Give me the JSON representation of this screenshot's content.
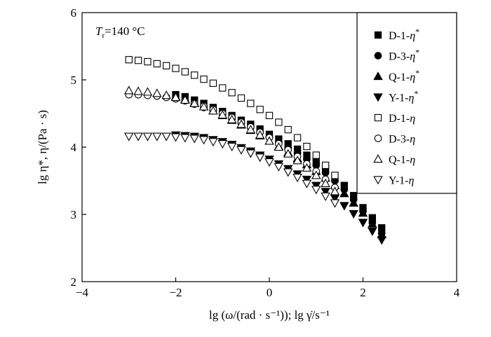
{
  "chart_data": {
    "type": "scatter",
    "annotation": "Tr=140 °C",
    "annotation_parts": {
      "symbol": "T",
      "subscript": "r",
      "value": "=140 °C"
    },
    "xlabel": "lg (ω/(rad · s⁻¹)); lg γ̇/s⁻¹",
    "ylabel": "lg η*, η/(Pa · s)",
    "xlim": [
      -4,
      4
    ],
    "ylim": [
      2,
      6
    ],
    "xticks": [
      -4,
      -2,
      0,
      2,
      4
    ],
    "yticks": [
      2,
      3,
      4,
      5,
      6
    ],
    "xtick_labels": [
      "−4",
      "−2",
      "0",
      "2",
      "4"
    ],
    "ytick_labels": [
      "2",
      "3",
      "4",
      "5",
      "6"
    ],
    "grid": false,
    "legend_position": "top-right",
    "series": [
      {
        "name": "D-1-η*",
        "marker": "square",
        "filled": true,
        "x": [
          -2.0,
          -1.8,
          -1.6,
          -1.4,
          -1.2,
          -1.0,
          -0.8,
          -0.6,
          -0.4,
          -0.2,
          0.0,
          0.2,
          0.4,
          0.6,
          0.8,
          1.0,
          1.2,
          1.4,
          1.6,
          1.8,
          2.0,
          2.2,
          2.4
        ],
        "y": [
          4.78,
          4.75,
          4.7,
          4.65,
          4.59,
          4.53,
          4.47,
          4.4,
          4.34,
          4.27,
          4.19,
          4.12,
          4.05,
          3.97,
          3.88,
          3.79,
          3.68,
          3.56,
          3.43,
          3.28,
          3.1,
          2.95,
          2.8
        ]
      },
      {
        "name": "D-3-η*",
        "marker": "circle",
        "filled": true,
        "x": [
          -2.0,
          -1.8,
          -1.6,
          -1.4,
          -1.2,
          -1.0,
          -0.8,
          -0.6,
          -0.4,
          -0.2,
          0.0,
          0.2,
          0.4,
          0.6,
          0.8,
          1.0,
          1.2,
          1.4,
          1.6,
          1.8,
          2.0,
          2.2,
          2.4
        ],
        "y": [
          4.72,
          4.69,
          4.64,
          4.59,
          4.54,
          4.48,
          4.42,
          4.36,
          4.29,
          4.22,
          4.15,
          4.07,
          3.99,
          3.91,
          3.82,
          3.73,
          3.62,
          3.5,
          3.37,
          3.22,
          3.05,
          2.88,
          2.72
        ]
      },
      {
        "name": "Q-1-η*",
        "marker": "triangle-up",
        "filled": true,
        "x": [
          -2.0,
          -1.8,
          -1.6,
          -1.4,
          -1.2,
          -1.0,
          -0.8,
          -0.6,
          -0.4,
          -0.2,
          0.0,
          0.2,
          0.4,
          0.6,
          0.8,
          1.0,
          1.2,
          1.4,
          1.6,
          1.8,
          2.0,
          2.2,
          2.4
        ],
        "y": [
          4.75,
          4.71,
          4.66,
          4.6,
          4.54,
          4.47,
          4.4,
          4.33,
          4.25,
          4.17,
          4.09,
          4.01,
          3.92,
          3.83,
          3.74,
          3.64,
          3.54,
          3.43,
          3.31,
          3.17,
          3.02,
          2.86,
          2.7
        ]
      },
      {
        "name": "Y-1-η*",
        "marker": "triangle-down",
        "filled": true,
        "x": [
          -2.0,
          -1.8,
          -1.6,
          -1.4,
          -1.2,
          -1.0,
          -0.8,
          -0.6,
          -0.4,
          -0.2,
          0.0,
          0.2,
          0.4,
          0.6,
          0.8,
          1.0,
          1.2,
          1.4,
          1.6,
          1.8,
          2.0,
          2.2,
          2.4
        ],
        "y": [
          4.18,
          4.17,
          4.16,
          4.14,
          4.11,
          4.08,
          4.04,
          3.99,
          3.94,
          3.88,
          3.82,
          3.75,
          3.68,
          3.6,
          3.52,
          3.43,
          3.34,
          3.24,
          3.13,
          3.01,
          2.88,
          2.75,
          2.62
        ]
      },
      {
        "name": "D-1-η",
        "marker": "square",
        "filled": false,
        "x": [
          -3.0,
          -2.8,
          -2.6,
          -2.4,
          -2.2,
          -2.0,
          -1.8,
          -1.6,
          -1.4,
          -1.2,
          -1.0,
          -0.8,
          -0.6,
          -0.4,
          -0.2,
          0.0,
          0.2,
          0.4,
          0.6,
          0.8,
          1.0,
          1.2,
          1.4
        ],
        "y": [
          5.3,
          5.29,
          5.27,
          5.24,
          5.21,
          5.17,
          5.12,
          5.07,
          5.01,
          4.95,
          4.88,
          4.81,
          4.73,
          4.65,
          4.56,
          4.47,
          4.37,
          4.26,
          4.14,
          4.01,
          3.88,
          3.73,
          3.58
        ]
      },
      {
        "name": "D-3-η",
        "marker": "circle",
        "filled": false,
        "x": [
          -3.0,
          -2.8,
          -2.6,
          -2.4,
          -2.2,
          -2.0,
          -1.8,
          -1.6,
          -1.4,
          -1.2,
          -1.0,
          -0.8,
          -0.6,
          -0.4,
          -0.2,
          0.0,
          0.2,
          0.4,
          0.6,
          0.8,
          1.0,
          1.2,
          1.4
        ],
        "y": [
          4.78,
          4.78,
          4.77,
          4.76,
          4.74,
          4.72,
          4.69,
          4.65,
          4.61,
          4.56,
          4.5,
          4.44,
          4.37,
          4.3,
          4.22,
          4.14,
          4.05,
          3.96,
          3.86,
          3.75,
          3.64,
          3.52,
          3.4
        ]
      },
      {
        "name": "Q-1-η",
        "marker": "triangle-up",
        "filled": false,
        "x": [
          -3.0,
          -2.8,
          -2.6,
          -2.4,
          -2.2,
          -2.0,
          -1.8,
          -1.6,
          -1.4,
          -1.2,
          -1.0,
          -0.8,
          -0.6,
          -0.4,
          -0.2,
          0.0,
          0.2,
          0.4,
          0.6,
          0.8,
          1.0,
          1.2,
          1.4
        ],
        "y": [
          4.84,
          4.83,
          4.82,
          4.8,
          4.77,
          4.74,
          4.7,
          4.65,
          4.6,
          4.54,
          4.48,
          4.41,
          4.34,
          4.26,
          4.18,
          4.09,
          4.0,
          3.9,
          3.8,
          3.69,
          3.58,
          3.46,
          3.34
        ]
      },
      {
        "name": "Y-1-η",
        "marker": "triangle-down",
        "filled": false,
        "x": [
          -3.0,
          -2.8,
          -2.6,
          -2.4,
          -2.2,
          -2.0,
          -1.8,
          -1.6,
          -1.4,
          -1.2,
          -1.0,
          -0.8,
          -0.6,
          -0.4,
          -0.2,
          0.0,
          0.2,
          0.4,
          0.6,
          0.8,
          1.0,
          1.2,
          1.4
        ],
        "y": [
          4.16,
          4.16,
          4.16,
          4.16,
          4.16,
          4.15,
          4.14,
          4.13,
          4.11,
          4.08,
          4.05,
          4.01,
          3.96,
          3.91,
          3.85,
          3.78,
          3.71,
          3.63,
          3.55,
          3.46,
          3.37,
          3.27,
          3.17
        ]
      }
    ]
  }
}
